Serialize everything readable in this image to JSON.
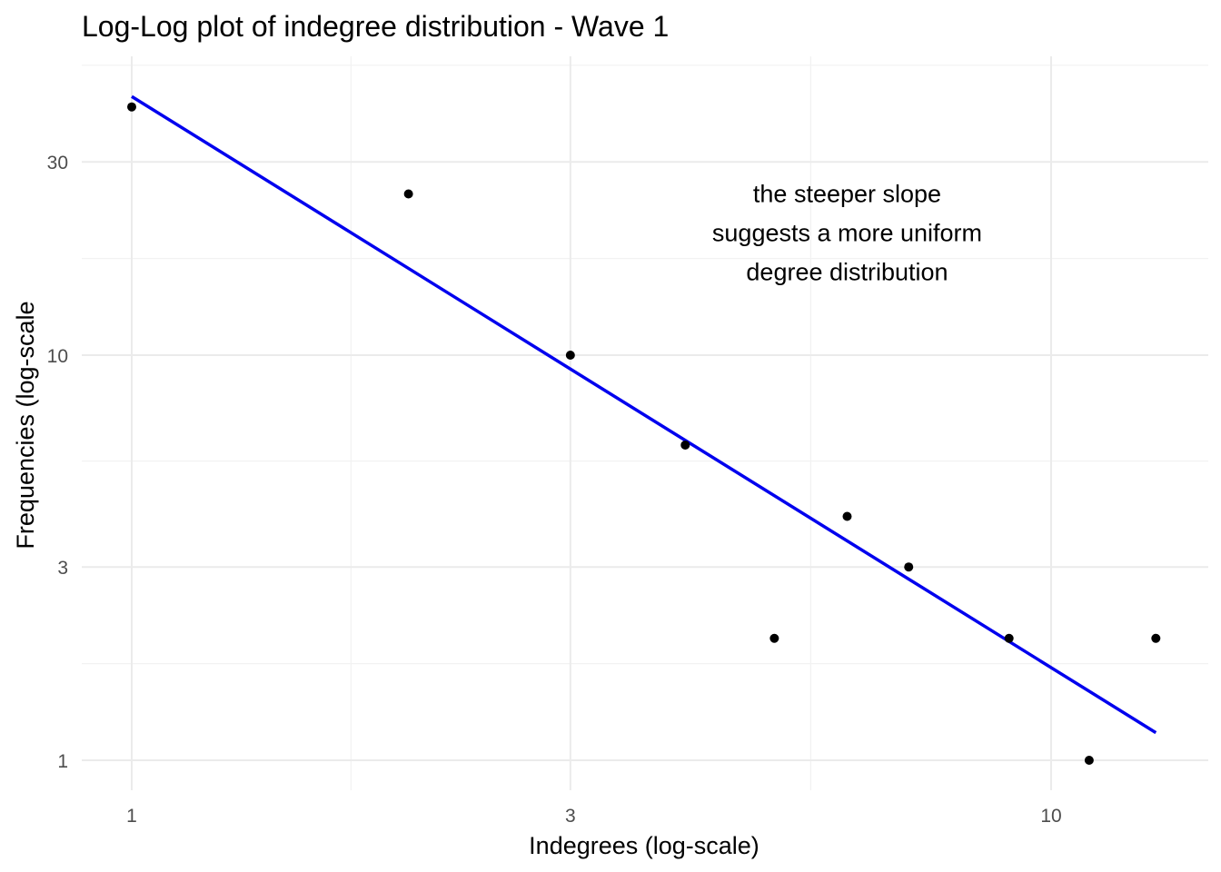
{
  "chart_data": {
    "type": "scatter",
    "title": "Log-Log plot of indegree distribution - Wave 1",
    "xlabel": "Indegrees (log-scale)",
    "ylabel": "Frequencies (log-scale",
    "x_scale": "log",
    "y_scale": "log",
    "xlim": [
      0.95,
      13.2
    ],
    "ylim": [
      0.85,
      55
    ],
    "x_ticks": [
      1,
      3,
      10
    ],
    "x_tick_labels": [
      "1",
      "3",
      "10"
    ],
    "y_ticks": [
      1,
      3,
      10,
      30
    ],
    "y_tick_labels": [
      "1",
      "3",
      "10",
      "30"
    ],
    "grid": true,
    "points": [
      {
        "x": 1,
        "y": 41
      },
      {
        "x": 2,
        "y": 25
      },
      {
        "x": 3,
        "y": 10
      },
      {
        "x": 4,
        "y": 6
      },
      {
        "x": 5,
        "y": 2
      },
      {
        "x": 6,
        "y": 4
      },
      {
        "x": 7,
        "y": 3
      },
      {
        "x": 9,
        "y": 2
      },
      {
        "x": 11,
        "y": 1
      },
      {
        "x": 13,
        "y": 2
      }
    ],
    "fit_line": {
      "color": "#0000ee",
      "from": {
        "x": 1,
        "y": 43.5
      },
      "to": {
        "x": 13,
        "y": 1.17
      }
    },
    "point_color": "#000000",
    "annotation": {
      "lines": [
        "the steeper slope",
        "suggests a more uniform",
        "degree distribution"
      ],
      "x": 6,
      "y": 20
    }
  }
}
